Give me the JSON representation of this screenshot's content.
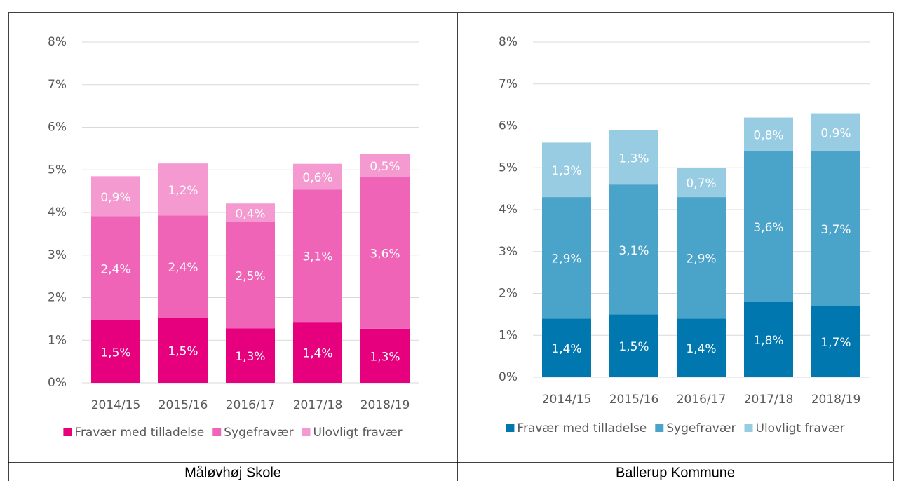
{
  "chart_data": [
    {
      "type": "stacked_bar",
      "caption": "Måløvhøj Skole",
      "categories": [
        "2014/15",
        "2015/16",
        "2016/17",
        "2017/18",
        "2018/19"
      ],
      "series": [
        {
          "name": "Fravær med tilladelse",
          "color": "#e6007e",
          "values": [
            1.47,
            1.53,
            1.28,
            1.43,
            1.27
          ],
          "value_labels": [
            "1,5%",
            "1,5%",
            "1,3%",
            "1,4%",
            "1,3%"
          ]
        },
        {
          "name": "Sygefravær",
          "color": "#f064b8",
          "values": [
            2.44,
            2.4,
            2.49,
            3.11,
            3.57
          ],
          "value_labels": [
            "2,4%",
            "2,4%",
            "2,5%",
            "3,1%",
            "3,6%"
          ]
        },
        {
          "name": "Ulovligt fravær",
          "color": "#f49ad0",
          "values": [
            0.94,
            1.22,
            0.44,
            0.6,
            0.53
          ],
          "value_labels": [
            "0,9%",
            "1,2%",
            "0,4%",
            "0,6%",
            "0,5%"
          ]
        }
      ],
      "ylim": [
        0,
        8
      ],
      "yticks": [
        {
          "value": 0,
          "label": "0%"
        },
        {
          "value": 1,
          "label": "1%"
        },
        {
          "value": 2,
          "label": "2%"
        },
        {
          "value": 3,
          "label": "3%"
        },
        {
          "value": 4,
          "label": "4%"
        },
        {
          "value": 5,
          "label": "5%"
        },
        {
          "value": 6,
          "label": "6%"
        },
        {
          "value": 7,
          "label": "7%"
        },
        {
          "value": 8,
          "label": "8%"
        }
      ],
      "grid": true,
      "legend": "bottom"
    },
    {
      "type": "stacked_bar",
      "caption": "Ballerup Kommune",
      "categories": [
        "2014/15",
        "2015/16",
        "2016/17",
        "2017/18",
        "2018/19"
      ],
      "series": [
        {
          "name": "Fravær med tilladelse",
          "color": "#0077ae",
          "values": [
            1.4,
            1.5,
            1.4,
            1.8,
            1.7
          ],
          "value_labels": [
            "1,4%",
            "1,5%",
            "1,4%",
            "1,8%",
            "1,7%"
          ]
        },
        {
          "name": "Sygefravær",
          "color": "#4aa3c9",
          "values": [
            2.9,
            3.1,
            2.9,
            3.6,
            3.7
          ],
          "value_labels": [
            "2,9%",
            "3,1%",
            "2,9%",
            "3,6%",
            "3,7%"
          ]
        },
        {
          "name": "Ulovligt fravær",
          "color": "#98cce2",
          "values": [
            1.3,
            1.3,
            0.7,
            0.8,
            0.9
          ],
          "value_labels": [
            "1,3%",
            "1,3%",
            "0,7%",
            "0,8%",
            "0,9%"
          ]
        }
      ],
      "ylim": [
        0,
        8
      ],
      "yticks": [
        {
          "value": 0,
          "label": "0%"
        },
        {
          "value": 1,
          "label": "1%"
        },
        {
          "value": 2,
          "label": "2%"
        },
        {
          "value": 3,
          "label": "3%"
        },
        {
          "value": 4,
          "label": "4%"
        },
        {
          "value": 5,
          "label": "5%"
        },
        {
          "value": 6,
          "label": "6%"
        },
        {
          "value": 7,
          "label": "7%"
        },
        {
          "value": 8,
          "label": "8%"
        }
      ],
      "grid": true,
      "legend": "bottom"
    }
  ]
}
